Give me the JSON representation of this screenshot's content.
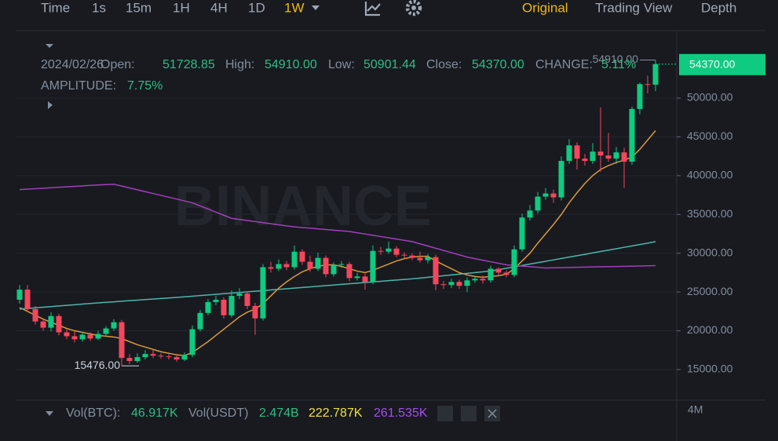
{
  "toolbar": {
    "intervals": [
      "Time",
      "1s",
      "15m",
      "1H",
      "4H",
      "1D",
      "1W"
    ],
    "views": [
      "Original",
      "Trading View",
      "Depth"
    ]
  },
  "info": {
    "date": "2024/02/26",
    "open_label": "Open:",
    "open": "51728.85",
    "high_label": "High:",
    "high": "54910.00",
    "low_label": "Low:",
    "low": "50901.44",
    "close_label": "Close:",
    "close": "54370.00",
    "change_label": "CHANGE:",
    "change": "5.11%",
    "amplitude_label": "AMPLITUDE:",
    "amplitude": "7.75%"
  },
  "volume": {
    "btc_label": "Vol(BTC):",
    "btc": "46.917K",
    "usdt_label": "Vol(USDT)",
    "usdt": "2.474B",
    "ma1": "222.787K",
    "ma2": "261.535K",
    "axis_label": "4M"
  },
  "watermark": "BINANCE",
  "chart_data": {
    "type": "candlestick",
    "categories": [
      null,
      null,
      null,
      null,
      null,
      null,
      null,
      null,
      null,
      null,
      null,
      null,
      null,
      null,
      null,
      null,
      null,
      null,
      null,
      null,
      null,
      null,
      null,
      null,
      null,
      null,
      null,
      null,
      null,
      null,
      null,
      null,
      null,
      null,
      null,
      null,
      null,
      null,
      null,
      null,
      null,
      null,
      null,
      null,
      null,
      null,
      null,
      null,
      null,
      null,
      null,
      null,
      null,
      null,
      null,
      null,
      null,
      null,
      null,
      null,
      null,
      null,
      null,
      null,
      null,
      null,
      null,
      null,
      null,
      null,
      null,
      null,
      null,
      null,
      null,
      null,
      null,
      null,
      null,
      null,
      null,
      null
    ],
    "open": [
      24000,
      25300,
      22800,
      21200,
      20400,
      21900,
      19800,
      19300,
      18900,
      19500,
      19000,
      19600,
      20300,
      21100,
      16500,
      16100,
      16600,
      17000,
      16800,
      16700,
      16600,
      16300,
      16900,
      20200,
      22300,
      23700,
      24000,
      22000,
      24500,
      24800,
      23200,
      21600,
      28200,
      28000,
      28600,
      28200,
      30200,
      28900,
      28000,
      29400,
      27300,
      28500,
      28600,
      26800,
      27000,
      26300,
      30300,
      30200,
      30600,
      29800,
      29700,
      29400,
      29100,
      29500,
      26000,
      25900,
      26300,
      25800,
      26500,
      26700,
      26500,
      28000,
      27500,
      27200,
      30500,
      34600,
      35500,
      37300,
      37700,
      37200,
      41900,
      43900,
      42200,
      41900,
      43100,
      42600,
      42200,
      43000,
      41800,
      48600,
      51800,
      51728.85
    ],
    "high": [
      25900,
      25900,
      23200,
      21600,
      22400,
      22200,
      20200,
      19900,
      19900,
      19800,
      20000,
      20600,
      21500,
      21400,
      17000,
      17100,
      17500,
      17600,
      17100,
      17000,
      16900,
      17200,
      20700,
      22700,
      24100,
      24500,
      24300,
      25200,
      25500,
      25100,
      23600,
      28600,
      28900,
      29200,
      29000,
      31000,
      30500,
      29700,
      30100,
      29700,
      28800,
      29000,
      28900,
      27500,
      27400,
      31000,
      30800,
      31500,
      30900,
      30100,
      30000,
      30200,
      29900,
      29800,
      26400,
      26700,
      26600,
      26900,
      27100,
      27100,
      28400,
      28200,
      27800,
      31000,
      35100,
      36200,
      37900,
      38400,
      38200,
      42500,
      44700,
      44300,
      42800,
      44200,
      48800,
      45500,
      43700,
      43600,
      48900,
      52000,
      52900,
      54910
    ],
    "low": [
      23500,
      22500,
      20800,
      20000,
      19900,
      19400,
      18900,
      18500,
      18600,
      18700,
      18800,
      19300,
      20000,
      15476,
      15700,
      15900,
      16300,
      16500,
      16400,
      16300,
      16000,
      16100,
      16600,
      19900,
      22000,
      23300,
      21600,
      21700,
      24100,
      22800,
      19500,
      21300,
      27500,
      27700,
      27800,
      27900,
      28500,
      27600,
      27700,
      26900,
      27000,
      28100,
      26400,
      26500,
      25300,
      26000,
      29800,
      29900,
      29500,
      29300,
      29100,
      28800,
      28700,
      25200,
      25400,
      25500,
      25400,
      25000,
      26200,
      26100,
      26200,
      27100,
      26900,
      26900,
      30200,
      34200,
      35100,
      36900,
      36500,
      36800,
      41500,
      40800,
      41300,
      41500,
      40500,
      41800,
      41500,
      38400,
      41400,
      47900,
      50600,
      50901.44
    ],
    "close": [
      25300,
      22800,
      21200,
      20400,
      21900,
      19800,
      19300,
      18900,
      19500,
      19000,
      19600,
      20300,
      21100,
      16500,
      16100,
      16600,
      17000,
      16800,
      16700,
      16600,
      16300,
      16900,
      20200,
      22300,
      23700,
      24000,
      22000,
      24500,
      24800,
      23200,
      21600,
      28200,
      28000,
      28600,
      28200,
      30200,
      28900,
      28000,
      29400,
      27300,
      28500,
      28600,
      26800,
      27000,
      26300,
      30300,
      30200,
      30600,
      29800,
      29700,
      29400,
      29100,
      29500,
      26000,
      25900,
      26300,
      25800,
      26500,
      26700,
      26500,
      28000,
      27500,
      27200,
      30500,
      34600,
      35500,
      37300,
      37700,
      37200,
      41900,
      43900,
      42200,
      41900,
      43100,
      42600,
      42200,
      43000,
      41800,
      48600,
      51800,
      51728.85,
      54370
    ],
    "up_color": "#0ecb81",
    "down_color": "#f6465d",
    "lines": [
      {
        "color": "#d89a3a",
        "values": [
          23000,
          22500,
          22000,
          21500,
          21100,
          20700,
          20300,
          20000,
          19800,
          19600,
          19400,
          19300,
          19200,
          19000,
          18600,
          18200,
          17900,
          17600,
          17300,
          17100,
          16900,
          16800,
          17200,
          17900,
          18600,
          19400,
          20200,
          21000,
          21800,
          22400,
          22800,
          23500,
          24500,
          25500,
          26300,
          27000,
          27600,
          28000,
          28300,
          28500,
          28500,
          28300,
          28000,
          27700,
          27500,
          27800,
          28200,
          28600,
          29000,
          29300,
          29500,
          29600,
          29600,
          29000,
          28500,
          28000,
          27500,
          27200,
          27000,
          26900,
          27000,
          27100,
          27300,
          28000,
          29000,
          30000,
          31300,
          32500,
          33700,
          35000,
          36500,
          37800,
          39000,
          40000,
          40800,
          41300,
          41700,
          42000,
          42400,
          43400,
          44600,
          45800
        ]
      },
      {
        "color": "#4db6ac",
        "values": [
          22800,
          22880,
          22960,
          23040,
          23120,
          23200,
          23280,
          23360,
          23440,
          23520,
          23600,
          23670,
          23740,
          23810,
          23880,
          23950,
          24020,
          24090,
          24160,
          24230,
          24300,
          24380,
          24460,
          24540,
          24620,
          24700,
          24780,
          24860,
          24940,
          25020,
          25100,
          25180,
          25260,
          25340,
          25420,
          25500,
          25580,
          25660,
          25740,
          25820,
          25900,
          25980,
          26060,
          26140,
          26220,
          26300,
          26380,
          26460,
          26540,
          26620,
          26700,
          26800,
          26900,
          27000,
          27100,
          27200,
          27300,
          27400,
          27500,
          27600,
          27700,
          27880,
          28060,
          28240,
          28420,
          28600,
          28780,
          28960,
          29140,
          29320,
          29500,
          29680,
          29860,
          30040,
          30220,
          30400,
          30580,
          30760,
          30940,
          31120,
          31300,
          31500
        ]
      },
      {
        "color": "#a040b8",
        "values": [
          38200,
          38260,
          38320,
          38380,
          38440,
          38500,
          38560,
          38620,
          38680,
          38740,
          38800,
          38850,
          38900,
          38660,
          38420,
          38180,
          37940,
          37700,
          37460,
          37220,
          36980,
          36740,
          36500,
          36100,
          35700,
          35300,
          34900,
          34500,
          34360,
          34220,
          34080,
          33940,
          33800,
          33660,
          33520,
          33400,
          33310,
          33230,
          33140,
          33060,
          32970,
          32890,
          32800,
          32640,
          32480,
          32310,
          32150,
          31990,
          31830,
          31660,
          31500,
          31210,
          30930,
          30640,
          30360,
          30070,
          29790,
          29500,
          29300,
          29100,
          28900,
          28700,
          28500,
          28420,
          28340,
          28260,
          28180,
          28100,
          28120,
          28140,
          28160,
          28180,
          28210,
          28230,
          28250,
          28270,
          28290,
          28310,
          28330,
          28350,
          28370,
          28400
        ]
      }
    ],
    "ylim": [
      11050,
      58600
    ],
    "yticks": [
      {
        "value": 50000,
        "label": "50000.00"
      },
      {
        "value": 45000,
        "label": "45000.00"
      },
      {
        "value": 40000,
        "label": "40000.00"
      },
      {
        "value": 35000,
        "label": "35000.00"
      },
      {
        "value": 30000,
        "label": "30000.00"
      },
      {
        "value": 25000,
        "label": "25000.00"
      },
      {
        "value": 20000,
        "label": "20000.00"
      },
      {
        "value": 15000,
        "label": "15000.00"
      }
    ],
    "grid": true,
    "last_price": {
      "value": 54370,
      "label": "54370.00"
    },
    "max_marker": {
      "value": 54910,
      "label": "54910.00",
      "index": 81
    },
    "min_marker": {
      "value": 15476,
      "label": "15476.00",
      "index": 13
    }
  }
}
